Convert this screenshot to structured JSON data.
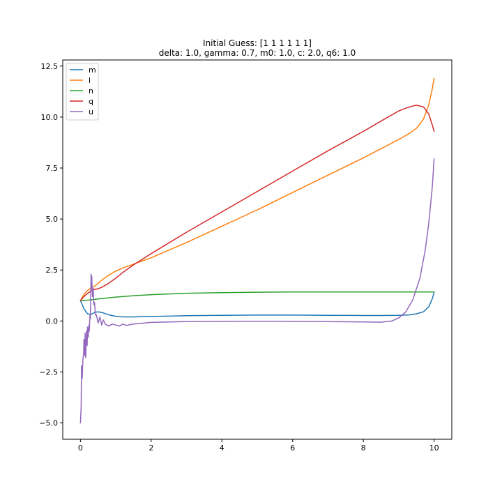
{
  "chart_data": {
    "type": "line",
    "title": "Initial Guess: [1 1 1 1 1 1]",
    "subtitle": "delta: 1.0, gamma: 0.7, m0: 1.0, c: 2.0, q6: 1.0",
    "xlabel": "",
    "ylabel": "",
    "xlim": [
      -0.5,
      10.5
    ],
    "ylim": [
      -5.8,
      12.8
    ],
    "x_ticks": [
      0,
      2,
      4,
      6,
      8,
      10
    ],
    "x_tick_labels": [
      "0",
      "2",
      "4",
      "6",
      "8",
      "10"
    ],
    "y_ticks": [
      -5.0,
      -2.5,
      0.0,
      2.5,
      5.0,
      7.5,
      10.0,
      12.5
    ],
    "y_tick_labels": [
      "−5.0",
      "−2.5",
      "0.0",
      "2.5",
      "5.0",
      "7.5",
      "10.0",
      "12.5"
    ],
    "grid": false,
    "legend_position": "upper left",
    "series": [
      {
        "name": "m",
        "color": "#1f77b4",
        "points": [
          [
            0,
            1.0
          ],
          [
            0.1,
            0.6
          ],
          [
            0.2,
            0.35
          ],
          [
            0.3,
            0.32
          ],
          [
            0.4,
            0.42
          ],
          [
            0.5,
            0.45
          ],
          [
            0.6,
            0.42
          ],
          [
            0.8,
            0.3
          ],
          [
            1.0,
            0.23
          ],
          [
            1.2,
            0.2
          ],
          [
            1.5,
            0.2
          ],
          [
            2,
            0.22
          ],
          [
            3,
            0.26
          ],
          [
            4,
            0.28
          ],
          [
            5,
            0.29
          ],
          [
            6,
            0.29
          ],
          [
            7,
            0.28
          ],
          [
            8,
            0.27
          ],
          [
            8.5,
            0.27
          ],
          [
            9,
            0.28
          ],
          [
            9.3,
            0.3
          ],
          [
            9.5,
            0.35
          ],
          [
            9.7,
            0.45
          ],
          [
            9.85,
            0.7
          ],
          [
            9.95,
            1.1
          ],
          [
            10,
            1.4
          ]
        ]
      },
      {
        "name": "l",
        "color": "#ff7f0e",
        "points": [
          [
            0,
            1.0
          ],
          [
            0.1,
            1.3
          ],
          [
            0.2,
            1.5
          ],
          [
            0.3,
            1.62
          ],
          [
            0.4,
            1.7
          ],
          [
            0.5,
            1.85
          ],
          [
            0.6,
            2.0
          ],
          [
            0.8,
            2.25
          ],
          [
            1.0,
            2.45
          ],
          [
            1.2,
            2.6
          ],
          [
            1.4,
            2.72
          ],
          [
            1.6,
            2.85
          ],
          [
            2,
            3.1
          ],
          [
            3,
            3.85
          ],
          [
            4,
            4.65
          ],
          [
            5,
            5.45
          ],
          [
            6,
            6.3
          ],
          [
            7,
            7.15
          ],
          [
            8,
            8.0
          ],
          [
            9,
            8.9
          ],
          [
            9.3,
            9.2
          ],
          [
            9.5,
            9.45
          ],
          [
            9.7,
            9.9
          ],
          [
            9.85,
            10.6
          ],
          [
            9.95,
            11.4
          ],
          [
            10,
            11.9
          ]
        ]
      },
      {
        "name": "n",
        "color": "#2ca02c",
        "points": [
          [
            0,
            1.0
          ],
          [
            0.2,
            1.02
          ],
          [
            0.5,
            1.08
          ],
          [
            1,
            1.17
          ],
          [
            1.5,
            1.24
          ],
          [
            2,
            1.29
          ],
          [
            3,
            1.36
          ],
          [
            4,
            1.39
          ],
          [
            5,
            1.41
          ],
          [
            6,
            1.42
          ],
          [
            7,
            1.42
          ],
          [
            8,
            1.42
          ],
          [
            9,
            1.42
          ],
          [
            10,
            1.42
          ]
        ]
      },
      {
        "name": "q",
        "color": "#d62728",
        "points": [
          [
            0,
            1.0
          ],
          [
            0.1,
            1.2
          ],
          [
            0.2,
            1.35
          ],
          [
            0.3,
            1.48
          ],
          [
            0.4,
            1.55
          ],
          [
            0.5,
            1.58
          ],
          [
            0.6,
            1.65
          ],
          [
            0.8,
            1.85
          ],
          [
            1.0,
            2.1
          ],
          [
            1.2,
            2.38
          ],
          [
            1.5,
            2.75
          ],
          [
            2,
            3.3
          ],
          [
            3,
            4.35
          ],
          [
            4,
            5.35
          ],
          [
            5,
            6.35
          ],
          [
            6,
            7.35
          ],
          [
            7,
            8.35
          ],
          [
            8,
            9.3
          ],
          [
            8.5,
            9.8
          ],
          [
            9,
            10.3
          ],
          [
            9.3,
            10.5
          ],
          [
            9.5,
            10.58
          ],
          [
            9.7,
            10.5
          ],
          [
            9.85,
            10.15
          ],
          [
            9.95,
            9.6
          ],
          [
            10,
            9.3
          ]
        ]
      },
      {
        "name": "u",
        "color": "#9467bd",
        "points": [
          [
            0,
            -5.0
          ],
          [
            0.02,
            -4.2
          ],
          [
            0.03,
            -2.2
          ],
          [
            0.05,
            -2.8
          ],
          [
            0.07,
            -1.9
          ],
          [
            0.09,
            -1.6
          ],
          [
            0.1,
            -0.9
          ],
          [
            0.12,
            -1.7
          ],
          [
            0.13,
            -0.6
          ],
          [
            0.15,
            -1.8
          ],
          [
            0.17,
            -0.5
          ],
          [
            0.19,
            -1.2
          ],
          [
            0.2,
            -0.3
          ],
          [
            0.22,
            -0.8
          ],
          [
            0.24,
            -0.2
          ],
          [
            0.25,
            -0.5
          ],
          [
            0.27,
            0.3
          ],
          [
            0.28,
            0.1
          ],
          [
            0.29,
            1.0
          ],
          [
            0.3,
            2.3
          ],
          [
            0.31,
            1.6
          ],
          [
            0.32,
            2.2
          ],
          [
            0.34,
            1.2
          ],
          [
            0.36,
            1.6
          ],
          [
            0.38,
            0.8
          ],
          [
            0.4,
            0.9
          ],
          [
            0.42,
            0.3
          ],
          [
            0.45,
            0.3
          ],
          [
            0.5,
            -0.1
          ],
          [
            0.55,
            0.2
          ],
          [
            0.6,
            -0.2
          ],
          [
            0.65,
            0.05
          ],
          [
            0.7,
            -0.15
          ],
          [
            0.8,
            -0.25
          ],
          [
            0.9,
            -0.15
          ],
          [
            1.0,
            -0.2
          ],
          [
            1.1,
            -0.25
          ],
          [
            1.2,
            -0.15
          ],
          [
            1.3,
            -0.22
          ],
          [
            1.4,
            -0.18
          ],
          [
            1.5,
            -0.15
          ],
          [
            2,
            -0.07
          ],
          [
            3,
            -0.03
          ],
          [
            4,
            -0.02
          ],
          [
            5,
            -0.01
          ],
          [
            6,
            -0.02
          ],
          [
            7,
            -0.03
          ],
          [
            8,
            -0.05
          ],
          [
            8.5,
            -0.06
          ],
          [
            8.8,
            0.0
          ],
          [
            9.0,
            0.15
          ],
          [
            9.2,
            0.45
          ],
          [
            9.4,
            1.05
          ],
          [
            9.6,
            2.1
          ],
          [
            9.75,
            3.5
          ],
          [
            9.85,
            4.8
          ],
          [
            9.95,
            6.6
          ],
          [
            10,
            7.95
          ]
        ]
      }
    ]
  }
}
